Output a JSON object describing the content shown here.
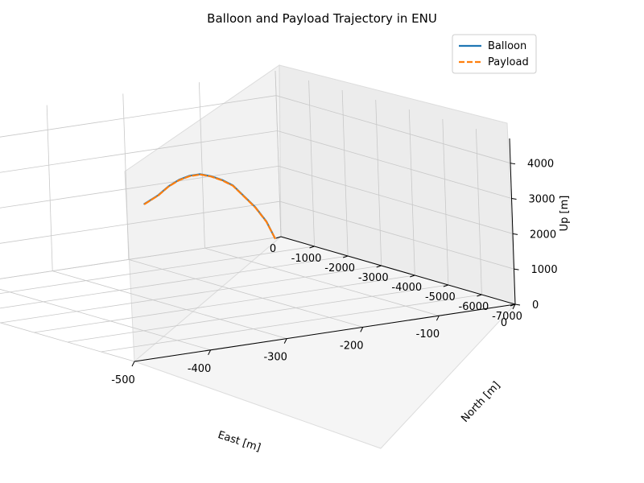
{
  "chart_data": {
    "type": "line",
    "projection": "3d",
    "title": "Balloon and Payload Trajectory in ENU",
    "xlabel": "East [m]",
    "ylabel": "North [m]",
    "zlabel": "Up [m]",
    "xlim": [
      -500,
      0
    ],
    "ylim": [
      -7000,
      0
    ],
    "zlim": [
      0,
      4700
    ],
    "xticks": [
      -500,
      -400,
      -300,
      -200,
      -100,
      0
    ],
    "yticks": [
      0,
      -1000,
      -2000,
      -3000,
      -4000,
      -5000,
      -6000,
      -7000
    ],
    "zticks": [
      0,
      1000,
      2000,
      3000,
      4000
    ],
    "grid": true,
    "legend": {
      "location": "upper right"
    },
    "series": [
      {
        "name": "Balloon",
        "color": "#1f77b4",
        "linestyle": "solid",
        "points": [
          {
            "east": -10,
            "north": -50,
            "up": 0
          },
          {
            "east": -40,
            "north": -500,
            "up": 700
          },
          {
            "east": -80,
            "north": -1100,
            "up": 1400
          },
          {
            "east": -120,
            "north": -1700,
            "up": 2000
          },
          {
            "east": -160,
            "north": -2300,
            "up": 2600
          },
          {
            "east": -200,
            "north": -2900,
            "up": 3050
          },
          {
            "east": -240,
            "north": -3500,
            "up": 3450
          },
          {
            "east": -280,
            "north": -4100,
            "up": 3800
          },
          {
            "east": -320,
            "north": -4700,
            "up": 4050
          },
          {
            "east": -360,
            "north": -5300,
            "up": 4230
          },
          {
            "east": -400,
            "north": -5900,
            "up": 4340
          },
          {
            "east": -440,
            "north": -6500,
            "up": 4380
          },
          {
            "east": -480,
            "north": -7000,
            "up": 4400
          }
        ]
      },
      {
        "name": "Payload",
        "color": "#ff7f0e",
        "linestyle": "dashed",
        "points": [
          {
            "east": -10,
            "north": -50,
            "up": 0
          },
          {
            "east": -40,
            "north": -500,
            "up": 690
          },
          {
            "east": -80,
            "north": -1100,
            "up": 1390
          },
          {
            "east": -120,
            "north": -1700,
            "up": 1990
          },
          {
            "east": -160,
            "north": -2300,
            "up": 2590
          },
          {
            "east": -200,
            "north": -2900,
            "up": 3040
          },
          {
            "east": -240,
            "north": -3500,
            "up": 3440
          },
          {
            "east": -280,
            "north": -4100,
            "up": 3790
          },
          {
            "east": -320,
            "north": -4700,
            "up": 4040
          },
          {
            "east": -360,
            "north": -5300,
            "up": 4220
          },
          {
            "east": -400,
            "north": -5900,
            "up": 4330
          },
          {
            "east": -440,
            "north": -6500,
            "up": 4370
          },
          {
            "east": -480,
            "north": -7000,
            "up": 4390
          }
        ]
      }
    ]
  }
}
